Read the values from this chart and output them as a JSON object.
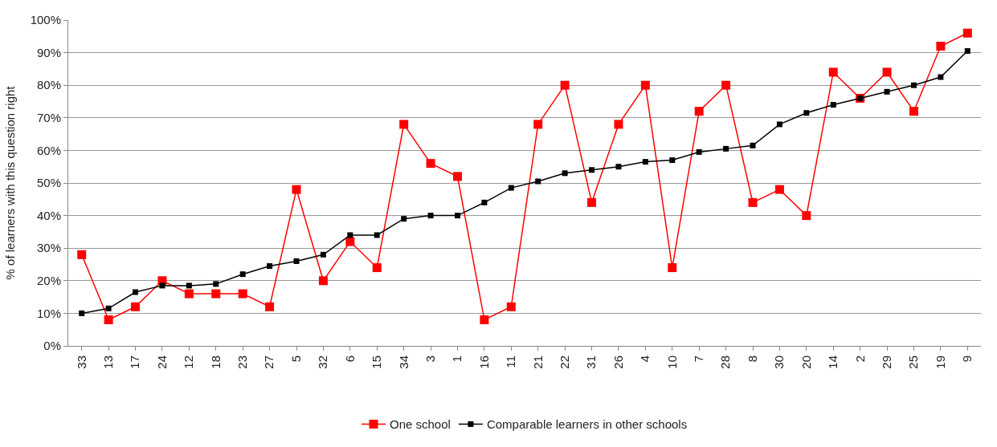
{
  "chart_data": {
    "type": "line",
    "ylabel": "% of learners with this question right",
    "categories": [
      "33",
      "13",
      "17",
      "24",
      "12",
      "18",
      "23",
      "27",
      "5",
      "32",
      "6",
      "15",
      "34",
      "3",
      "1",
      "16",
      "11",
      "21",
      "22",
      "31",
      "26",
      "4",
      "10",
      "7",
      "28",
      "8",
      "30",
      "20",
      "14",
      "2",
      "29",
      "25",
      "19",
      "9"
    ],
    "series": [
      {
        "name": "One school",
        "color": "#ff0000",
        "values": [
          28,
          8,
          12,
          20,
          16,
          16,
          16,
          12,
          48,
          20,
          32,
          24,
          68,
          56,
          52,
          8,
          12,
          68,
          80,
          44,
          68,
          80,
          24,
          72,
          80,
          44,
          48,
          40,
          84,
          76,
          84,
          72,
          92,
          96
        ]
      },
      {
        "name": "Comparable learners in other schools",
        "color": "#000000",
        "values": [
          10,
          11.5,
          16.5,
          18.5,
          18.5,
          19,
          22,
          24.5,
          26,
          28,
          34,
          34,
          39,
          40,
          40,
          44,
          48.5,
          50.5,
          53,
          54,
          55,
          56.5,
          57,
          59.5,
          60.5,
          61.5,
          68,
          71.5,
          74,
          76,
          78,
          80,
          82.5,
          90.5
        ]
      }
    ],
    "ylim": [
      0,
      100
    ],
    "yticks": [
      {
        "value": 0,
        "label": "0%"
      },
      {
        "value": 10,
        "label": "10%"
      },
      {
        "value": 20,
        "label": "20%"
      },
      {
        "value": 30,
        "label": "30%"
      },
      {
        "value": 40,
        "label": "40%"
      },
      {
        "value": 50,
        "label": "50%"
      },
      {
        "value": 60,
        "label": "60%"
      },
      {
        "value": 70,
        "label": "70%"
      },
      {
        "value": 80,
        "label": "80%"
      },
      {
        "value": 90,
        "label": "90%"
      },
      {
        "value": 100,
        "label": "100%"
      }
    ],
    "grid": "y",
    "legend": "bottom",
    "marker": "square",
    "line_style": "solid"
  }
}
